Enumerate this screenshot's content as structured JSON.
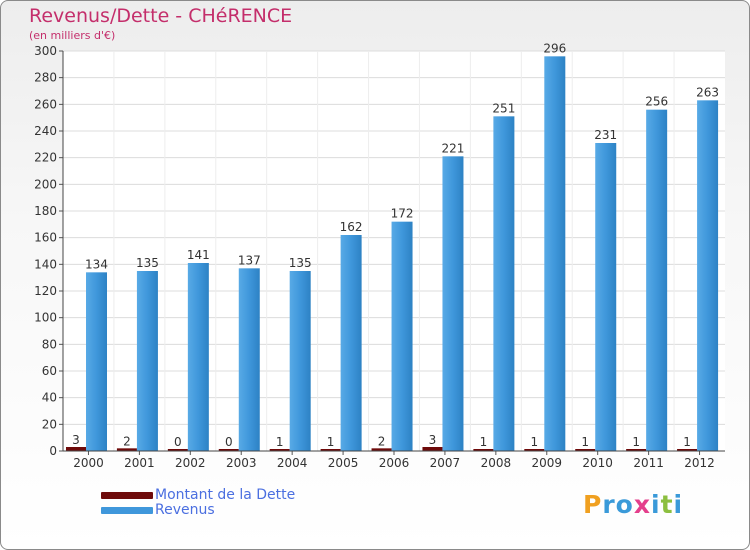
{
  "colors": {
    "debt": "#6e0a0a",
    "revenue": "#3f97db",
    "title": "#c42e6b",
    "legend_text": "#4b6fe0"
  },
  "chart_data": {
    "type": "bar",
    "title": "Revenus/Dette - CHéRENCE",
    "subtitle": "(en milliers d'€)",
    "categories": [
      "2000",
      "2001",
      "2002",
      "2003",
      "2004",
      "2005",
      "2006",
      "2007",
      "2008",
      "2009",
      "2010",
      "2011",
      "2012"
    ],
    "series": [
      {
        "name": "Montant de la Dette",
        "values": [
          3,
          2,
          0,
          0,
          1,
          1,
          2,
          3,
          1,
          1,
          1,
          1,
          1
        ]
      },
      {
        "name": "Revenus",
        "values": [
          134,
          135,
          141,
          137,
          135,
          162,
          172,
          221,
          251,
          296,
          231,
          256,
          263
        ]
      }
    ],
    "yticks": [
      0,
      20,
      40,
      60,
      80,
      100,
      120,
      140,
      160,
      180,
      200,
      220,
      240,
      260,
      280,
      300
    ],
    "ylim": [
      0,
      300
    ],
    "grid": true,
    "legend": "bottom-left"
  },
  "logo": {
    "letters": [
      "P",
      "r",
      "o",
      "x",
      "i",
      "t",
      "i"
    ],
    "colors": [
      "#f0a020",
      "#3a9ad9",
      "#3a9ad9",
      "#e43f8c",
      "#3a9ad9",
      "#8cbf3f",
      "#3a9ad9"
    ]
  }
}
